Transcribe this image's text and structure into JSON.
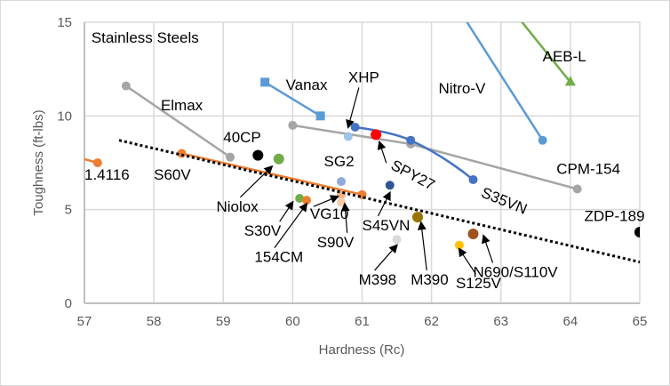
{
  "chart_data": {
    "type": "scatter",
    "title": "",
    "annotation_title": "Stainless Steels",
    "xlabel": "Hardness (Rc)",
    "ylabel": "Toughness (ft-lbs)",
    "xlim": [
      57,
      65
    ],
    "ylim": [
      0,
      15
    ],
    "xticks": [
      57,
      58,
      59,
      60,
      61,
      62,
      63,
      64,
      65
    ],
    "yticks": [
      0,
      5,
      10,
      15
    ],
    "grid": true,
    "legend": "none",
    "series": [
      {
        "name": "1.4116",
        "color": "#ED7D31",
        "marker": "circle",
        "points": [
          [
            56.5,
            8.2
          ],
          [
            57.19,
            7.5
          ]
        ]
      },
      {
        "name": "S60V",
        "color": "#ED7D31",
        "marker": "circle",
        "points": [
          [
            58.4,
            8.0
          ],
          [
            61.0,
            5.8
          ]
        ]
      },
      {
        "name": "Elmax",
        "color": "#A5A5A5",
        "marker": "circle",
        "points": [
          [
            57.6,
            11.6
          ],
          [
            59.1,
            7.8
          ]
        ]
      },
      {
        "name": "Vanax",
        "color": "#5B9BD5",
        "marker": "square",
        "points": [
          [
            59.6,
            11.8
          ],
          [
            60.4,
            10.0
          ]
        ]
      },
      {
        "name": "CPM-154",
        "color": "#A5A5A5",
        "marker": "circle",
        "points": [
          [
            60.0,
            9.5
          ],
          [
            61.7,
            8.5
          ],
          [
            64.1,
            6.1
          ]
        ]
      },
      {
        "name": "S35VN",
        "color": "#4472C4",
        "marker": "circle",
        "points": [
          [
            60.9,
            9.4
          ],
          [
            61.7,
            8.7
          ],
          [
            62.6,
            6.6
          ]
        ]
      },
      {
        "name": "Nitro-V",
        "color": "#5B9BD5",
        "marker": "circle",
        "points": [
          [
            62.2,
            16.8
          ],
          [
            63.6,
            8.7
          ]
        ]
      },
      {
        "name": "AEB-L",
        "color": "#70AD47",
        "marker": "triangle",
        "points": [
          [
            63.0,
            16.4
          ],
          [
            64.0,
            11.8
          ]
        ]
      },
      {
        "name": "40CP",
        "color": "#000000",
        "marker": "circle",
        "points": [
          [
            59.5,
            7.9
          ]
        ]
      },
      {
        "name": "Niolox",
        "color": "#70AD47",
        "marker": "circle",
        "points": [
          [
            59.8,
            7.7
          ]
        ]
      },
      {
        "name": "XHP",
        "color": "#9DC3E6",
        "marker": "circle",
        "points": [
          [
            60.8,
            8.9
          ]
        ]
      },
      {
        "name": "SPY27",
        "color": "#FF0000",
        "marker": "circle",
        "points": [
          [
            61.2,
            9.0
          ]
        ]
      },
      {
        "name": "SG2",
        "color": "#8FAADC",
        "marker": "circle",
        "points": [
          [
            60.7,
            6.5
          ]
        ]
      },
      {
        "name": "S45VN",
        "color": "#2F5597",
        "marker": "circle",
        "points": [
          [
            61.4,
            6.3
          ]
        ]
      },
      {
        "name": "S30V",
        "color": "#70AD47",
        "marker": "circle",
        "points": [
          [
            60.1,
            5.6
          ]
        ]
      },
      {
        "name": "154CM",
        "color": "#ED7D31",
        "marker": "circle",
        "points": [
          [
            60.2,
            5.5
          ]
        ]
      },
      {
        "name": "VG10",
        "color": "#F4B183",
        "marker": "circle",
        "points": [
          [
            60.7,
            5.8
          ]
        ]
      },
      {
        "name": "S90V",
        "color": "#F8CBAD",
        "marker": "circle",
        "points": [
          [
            60.7,
            5.4
          ]
        ]
      },
      {
        "name": "M398",
        "color": "#D9D9D9",
        "marker": "circle",
        "points": [
          [
            61.5,
            3.4
          ]
        ]
      },
      {
        "name": "M390",
        "color": "#997300",
        "marker": "circle",
        "points": [
          [
            61.8,
            4.6
          ]
        ]
      },
      {
        "name": "S125V",
        "color": "#FFC000",
        "marker": "circle",
        "points": [
          [
            62.4,
            3.1
          ]
        ]
      },
      {
        "name": "N690/S110V",
        "color": "#A0521E",
        "marker": "circle",
        "points": [
          [
            62.6,
            3.7
          ]
        ]
      },
      {
        "name": "ZDP-189",
        "color": "#000000",
        "marker": "circle",
        "points": [
          [
            65.0,
            3.8
          ]
        ]
      }
    ],
    "trendline": {
      "style": "dotted",
      "color": "#000000",
      "points": [
        [
          57.5,
          8.7
        ],
        [
          65.0,
          2.2
        ]
      ]
    },
    "annotations": [
      {
        "text": "Stainless Steels",
        "at": [
          57.1,
          13.9
        ],
        "arrow_to": null
      },
      {
        "text": "Elmax",
        "at": [
          58.1,
          10.3
        ],
        "arrow_to": null
      },
      {
        "text": "Vanax",
        "at": [
          59.9,
          11.4
        ],
        "arrow_to": null
      },
      {
        "text": "XHP",
        "at": [
          60.8,
          11.8
        ],
        "arrow_to": [
          60.8,
          9.4
        ]
      },
      {
        "text": "Nitro-V",
        "at": [
          62.1,
          11.2
        ],
        "arrow_to": null
      },
      {
        "text": "AEB-L",
        "at": [
          63.6,
          12.9
        ],
        "arrow_to": null
      },
      {
        "text": "40CP",
        "at": [
          59.0,
          8.6
        ],
        "arrow_to": null
      },
      {
        "text": "1.4116",
        "at": [
          57.0,
          6.6
        ],
        "arrow_to": null
      },
      {
        "text": "S60V",
        "at": [
          58.0,
          6.6
        ],
        "arrow_to": null
      },
      {
        "text": "Niolox",
        "at": [
          58.9,
          4.9
        ],
        "arrow_to": [
          59.7,
          7.3
        ]
      },
      {
        "text": "SG2",
        "at": [
          60.45,
          7.3
        ],
        "arrow_to": null
      },
      {
        "text": "SPY27",
        "at": [
          61.4,
          7.2
        ],
        "arrow_to": [
          61.25,
          8.6
        ]
      },
      {
        "text": "S35VN",
        "at": [
          62.7,
          5.7
        ],
        "arrow_to": null
      },
      {
        "text": "CPM-154",
        "at": [
          63.8,
          6.9
        ],
        "arrow_to": null
      },
      {
        "text": "ZDP-189",
        "at": [
          64.2,
          4.4
        ],
        "arrow_to": null
      },
      {
        "text": "S30V",
        "at": [
          59.3,
          3.6
        ],
        "arrow_to": [
          60.0,
          5.4
        ]
      },
      {
        "text": "154CM",
        "at": [
          59.45,
          2.2
        ],
        "arrow_to": [
          60.2,
          5.3
        ]
      },
      {
        "text": "VG10",
        "at": [
          60.25,
          4.5
        ],
        "arrow_to": [
          60.65,
          5.7
        ]
      },
      {
        "text": "S90V",
        "at": [
          60.35,
          3.0
        ],
        "arrow_to": [
          60.75,
          5.3
        ]
      },
      {
        "text": "S45VN",
        "at": [
          61.0,
          3.9
        ],
        "arrow_to": [
          61.4,
          5.9
        ]
      },
      {
        "text": "M398",
        "at": [
          60.95,
          1.0
        ],
        "arrow_to": [
          61.5,
          3.1
        ]
      },
      {
        "text": "M390",
        "at": [
          61.7,
          1.0
        ],
        "arrow_to": [
          61.85,
          4.3
        ]
      },
      {
        "text": "S125V",
        "at": [
          62.35,
          0.8
        ],
        "arrow_to": [
          62.4,
          2.9
        ]
      },
      {
        "text": "N690/S110V",
        "at": [
          62.6,
          1.4
        ],
        "arrow_to": [
          62.75,
          3.6
        ]
      }
    ]
  }
}
